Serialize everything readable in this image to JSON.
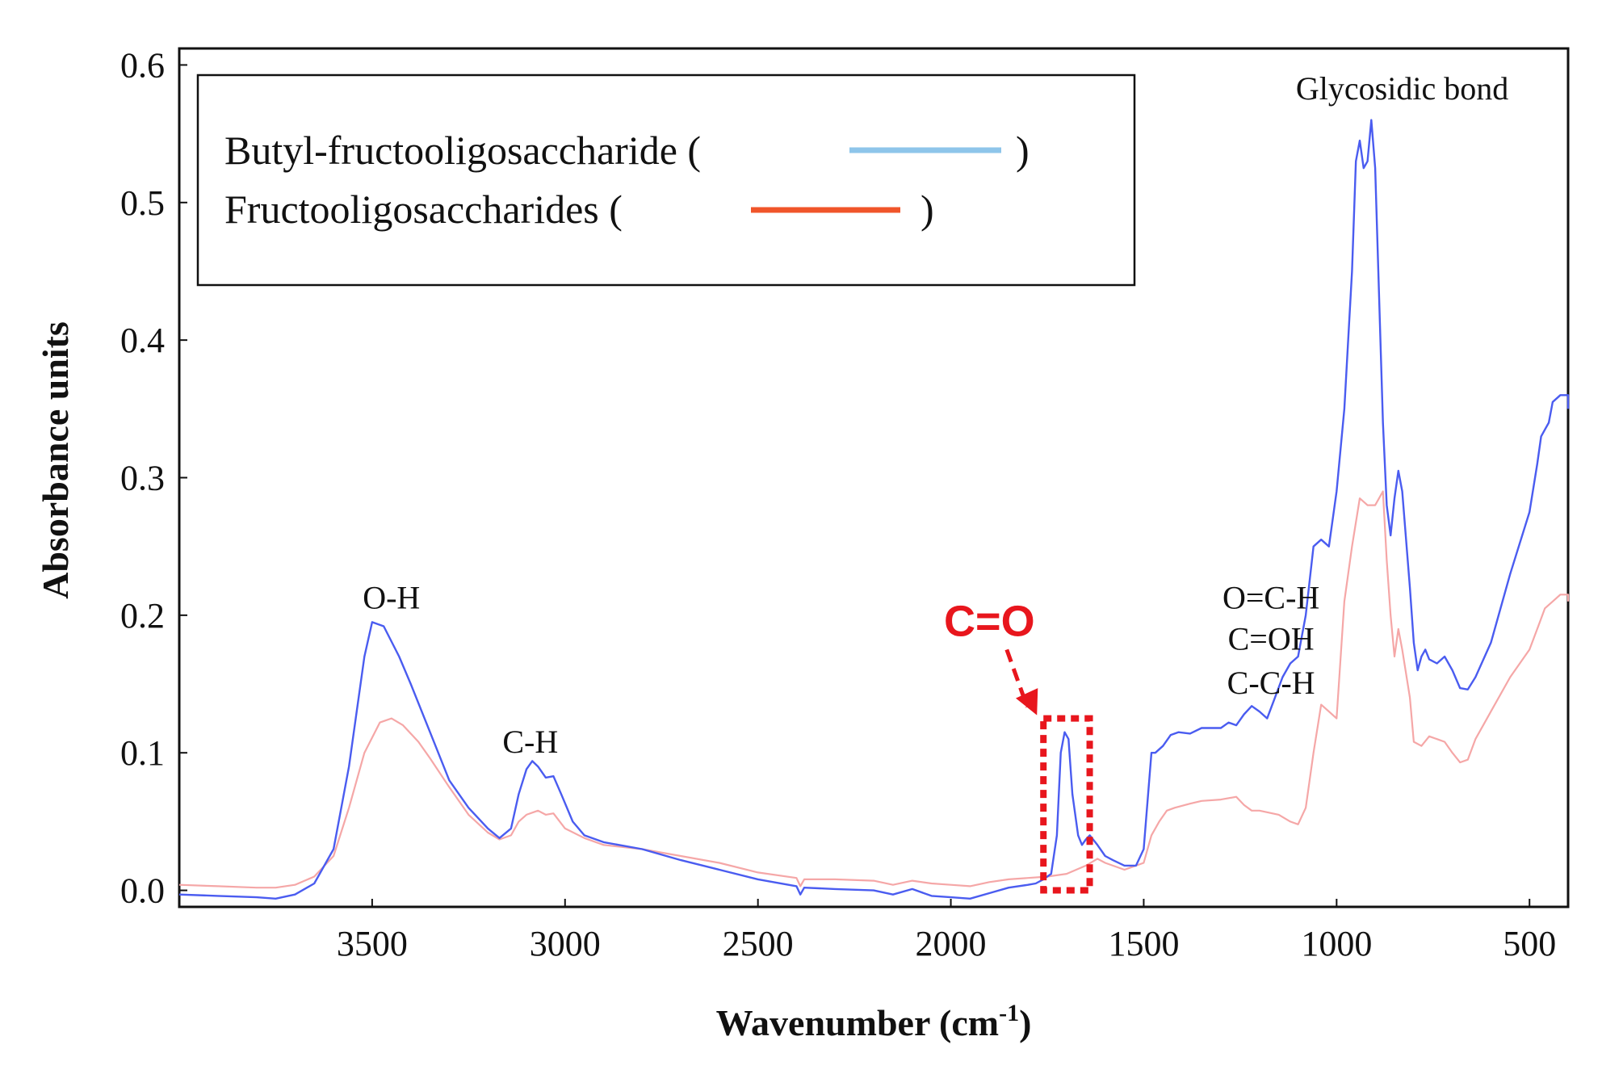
{
  "chart_data": {
    "type": "line",
    "xlabel": "Wavenumber (cm",
    "xlabel_sup": "-1",
    "xlabel_close": ")",
    "ylabel": "Absorbance units",
    "xlim": [
      4000,
      400
    ],
    "ylim": [
      -0.012,
      0.612
    ],
    "x_reversed": true,
    "grid": false,
    "x_ticks": [
      {
        "value": 3500,
        "label": "3500"
      },
      {
        "value": 3000,
        "label": "3000"
      },
      {
        "value": 2500,
        "label": "2500"
      },
      {
        "value": 2000,
        "label": "2000"
      },
      {
        "value": 1500,
        "label": "1500"
      },
      {
        "value": 1000,
        "label": "1000"
      },
      {
        "value": 500,
        "label": "500"
      }
    ],
    "y_ticks": [
      {
        "value": 0.0,
        "label": "0.0"
      },
      {
        "value": 0.1,
        "label": "0.1"
      },
      {
        "value": 0.2,
        "label": "0.2"
      },
      {
        "value": 0.3,
        "label": "0.3"
      },
      {
        "value": 0.4,
        "label": "0.4"
      },
      {
        "value": 0.5,
        "label": "0.5"
      },
      {
        "value": 0.6,
        "label": "0.6"
      }
    ],
    "legend": {
      "placement": "top-left",
      "entries": [
        {
          "label": "Butyl-fructooligosaccharide (",
          "close": ")",
          "color": "#8ec5ea"
        },
        {
          "label": "Fructooligosaccharides (",
          "close": ")",
          "color": "#f0552a"
        }
      ]
    },
    "series": [
      {
        "name": "Butyl-fructooligosaccharide",
        "color": "#4a5cf0",
        "points": [
          [
            4000,
            -0.003
          ],
          [
            3900,
            -0.004
          ],
          [
            3800,
            -0.005
          ],
          [
            3750,
            -0.006
          ],
          [
            3700,
            -0.003
          ],
          [
            3650,
            0.005
          ],
          [
            3600,
            0.03
          ],
          [
            3560,
            0.09
          ],
          [
            3520,
            0.17
          ],
          [
            3500,
            0.195
          ],
          [
            3470,
            0.192
          ],
          [
            3430,
            0.17
          ],
          [
            3400,
            0.15
          ],
          [
            3350,
            0.115
          ],
          [
            3300,
            0.08
          ],
          [
            3250,
            0.06
          ],
          [
            3200,
            0.045
          ],
          [
            3170,
            0.038
          ],
          [
            3140,
            0.045
          ],
          [
            3120,
            0.07
          ],
          [
            3100,
            0.088
          ],
          [
            3085,
            0.094
          ],
          [
            3070,
            0.09
          ],
          [
            3050,
            0.082
          ],
          [
            3030,
            0.083
          ],
          [
            3010,
            0.07
          ],
          [
            2980,
            0.05
          ],
          [
            2950,
            0.04
          ],
          [
            2900,
            0.035
          ],
          [
            2800,
            0.03
          ],
          [
            2700,
            0.022
          ],
          [
            2600,
            0.015
          ],
          [
            2500,
            0.008
          ],
          [
            2400,
            0.003
          ],
          [
            2390,
            -0.003
          ],
          [
            2380,
            0.002
          ],
          [
            2300,
            0.001
          ],
          [
            2200,
            0.0
          ],
          [
            2150,
            -0.003
          ],
          [
            2100,
            0.001
          ],
          [
            2050,
            -0.004
          ],
          [
            2000,
            -0.005
          ],
          [
            1950,
            -0.006
          ],
          [
            1900,
            -0.002
          ],
          [
            1850,
            0.002
          ],
          [
            1800,
            0.004
          ],
          [
            1780,
            0.005
          ],
          [
            1760,
            0.008
          ],
          [
            1740,
            0.012
          ],
          [
            1725,
            0.04
          ],
          [
            1715,
            0.1
          ],
          [
            1705,
            0.115
          ],
          [
            1695,
            0.11
          ],
          [
            1685,
            0.07
          ],
          [
            1670,
            0.04
          ],
          [
            1660,
            0.033
          ],
          [
            1650,
            0.037
          ],
          [
            1640,
            0.04
          ],
          [
            1620,
            0.033
          ],
          [
            1600,
            0.025
          ],
          [
            1580,
            0.022
          ],
          [
            1550,
            0.018
          ],
          [
            1520,
            0.018
          ],
          [
            1500,
            0.03
          ],
          [
            1480,
            0.1
          ],
          [
            1470,
            0.1
          ],
          [
            1450,
            0.105
          ],
          [
            1430,
            0.113
          ],
          [
            1410,
            0.115
          ],
          [
            1380,
            0.114
          ],
          [
            1350,
            0.118
          ],
          [
            1300,
            0.118
          ],
          [
            1280,
            0.122
          ],
          [
            1260,
            0.12
          ],
          [
            1240,
            0.128
          ],
          [
            1220,
            0.134
          ],
          [
            1200,
            0.13
          ],
          [
            1180,
            0.125
          ],
          [
            1160,
            0.14
          ],
          [
            1140,
            0.155
          ],
          [
            1120,
            0.165
          ],
          [
            1100,
            0.17
          ],
          [
            1080,
            0.2
          ],
          [
            1060,
            0.25
          ],
          [
            1040,
            0.255
          ],
          [
            1020,
            0.25
          ],
          [
            1000,
            0.29
          ],
          [
            980,
            0.35
          ],
          [
            960,
            0.45
          ],
          [
            950,
            0.53
          ],
          [
            940,
            0.545
          ],
          [
            930,
            0.525
          ],
          [
            920,
            0.53
          ],
          [
            910,
            0.56
          ],
          [
            900,
            0.525
          ],
          [
            880,
            0.34
          ],
          [
            870,
            0.28
          ],
          [
            860,
            0.258
          ],
          [
            850,
            0.285
          ],
          [
            840,
            0.305
          ],
          [
            830,
            0.29
          ],
          [
            810,
            0.22
          ],
          [
            800,
            0.18
          ],
          [
            790,
            0.16
          ],
          [
            780,
            0.17
          ],
          [
            770,
            0.175
          ],
          [
            760,
            0.168
          ],
          [
            740,
            0.165
          ],
          [
            720,
            0.17
          ],
          [
            700,
            0.16
          ],
          [
            680,
            0.147
          ],
          [
            660,
            0.146
          ],
          [
            640,
            0.155
          ],
          [
            600,
            0.18
          ],
          [
            550,
            0.23
          ],
          [
            500,
            0.275
          ],
          [
            480,
            0.31
          ],
          [
            470,
            0.33
          ],
          [
            460,
            0.335
          ],
          [
            450,
            0.34
          ],
          [
            440,
            0.355
          ],
          [
            420,
            0.36
          ],
          [
            400,
            0.36
          ],
          [
            380,
            0.36
          ],
          [
            360,
            0.352
          ],
          [
            350,
            0.35
          ]
        ]
      },
      {
        "name": "Fructooligosaccharides",
        "color": "#f5a7a7",
        "points": [
          [
            4000,
            0.004
          ],
          [
            3900,
            0.003
          ],
          [
            3800,
            0.002
          ],
          [
            3750,
            0.002
          ],
          [
            3700,
            0.004
          ],
          [
            3650,
            0.01
          ],
          [
            3600,
            0.025
          ],
          [
            3560,
            0.06
          ],
          [
            3520,
            0.1
          ],
          [
            3480,
            0.122
          ],
          [
            3450,
            0.125
          ],
          [
            3420,
            0.12
          ],
          [
            3380,
            0.108
          ],
          [
            3350,
            0.096
          ],
          [
            3300,
            0.075
          ],
          [
            3250,
            0.055
          ],
          [
            3200,
            0.042
          ],
          [
            3170,
            0.037
          ],
          [
            3140,
            0.04
          ],
          [
            3120,
            0.05
          ],
          [
            3100,
            0.055
          ],
          [
            3070,
            0.058
          ],
          [
            3050,
            0.055
          ],
          [
            3030,
            0.056
          ],
          [
            3000,
            0.045
          ],
          [
            2950,
            0.038
          ],
          [
            2900,
            0.033
          ],
          [
            2800,
            0.03
          ],
          [
            2700,
            0.025
          ],
          [
            2600,
            0.02
          ],
          [
            2500,
            0.013
          ],
          [
            2400,
            0.009
          ],
          [
            2390,
            0.003
          ],
          [
            2380,
            0.008
          ],
          [
            2300,
            0.008
          ],
          [
            2200,
            0.007
          ],
          [
            2150,
            0.004
          ],
          [
            2100,
            0.007
          ],
          [
            2050,
            0.005
          ],
          [
            2000,
            0.004
          ],
          [
            1950,
            0.003
          ],
          [
            1900,
            0.006
          ],
          [
            1850,
            0.008
          ],
          [
            1800,
            0.009
          ],
          [
            1750,
            0.01
          ],
          [
            1700,
            0.012
          ],
          [
            1650,
            0.018
          ],
          [
            1620,
            0.023
          ],
          [
            1600,
            0.02
          ],
          [
            1550,
            0.015
          ],
          [
            1500,
            0.02
          ],
          [
            1480,
            0.04
          ],
          [
            1460,
            0.05
          ],
          [
            1440,
            0.058
          ],
          [
            1420,
            0.06
          ],
          [
            1380,
            0.063
          ],
          [
            1350,
            0.065
          ],
          [
            1300,
            0.066
          ],
          [
            1260,
            0.068
          ],
          [
            1240,
            0.062
          ],
          [
            1220,
            0.058
          ],
          [
            1200,
            0.058
          ],
          [
            1150,
            0.055
          ],
          [
            1120,
            0.05
          ],
          [
            1100,
            0.048
          ],
          [
            1080,
            0.06
          ],
          [
            1060,
            0.1
          ],
          [
            1040,
            0.135
          ],
          [
            1020,
            0.13
          ],
          [
            1000,
            0.125
          ],
          [
            980,
            0.21
          ],
          [
            960,
            0.25
          ],
          [
            940,
            0.285
          ],
          [
            920,
            0.28
          ],
          [
            900,
            0.28
          ],
          [
            880,
            0.29
          ],
          [
            870,
            0.24
          ],
          [
            860,
            0.2
          ],
          [
            850,
            0.17
          ],
          [
            840,
            0.19
          ],
          [
            830,
            0.175
          ],
          [
            810,
            0.14
          ],
          [
            800,
            0.108
          ],
          [
            780,
            0.105
          ],
          [
            760,
            0.112
          ],
          [
            740,
            0.11
          ],
          [
            720,
            0.108
          ],
          [
            700,
            0.1
          ],
          [
            680,
            0.093
          ],
          [
            660,
            0.095
          ],
          [
            640,
            0.11
          ],
          [
            600,
            0.13
          ],
          [
            550,
            0.155
          ],
          [
            500,
            0.175
          ],
          [
            480,
            0.19
          ],
          [
            460,
            0.205
          ],
          [
            440,
            0.21
          ],
          [
            420,
            0.215
          ],
          [
            400,
            0.215
          ],
          [
            380,
            0.215
          ],
          [
            360,
            0.212
          ],
          [
            350,
            0.21
          ]
        ]
      }
    ],
    "annotations": [
      {
        "text": "O-H",
        "x": 3450,
        "y": 0.205
      },
      {
        "text": "C-H",
        "x": 3090,
        "y": 0.1
      },
      {
        "text": "C=O",
        "x": 1900,
        "y": 0.185,
        "color": "#e8161d",
        "bold": true
      },
      {
        "text": "O=C-H",
        "x": 1170,
        "y": 0.205
      },
      {
        "text": "C=OH",
        "x": 1170,
        "y": 0.175
      },
      {
        "text": "C-C-H",
        "x": 1170,
        "y": 0.143
      },
      {
        "text": "Glycosidic bond",
        "x": 830,
        "y": 0.575
      }
    ],
    "highlight": {
      "x_range": [
        1760,
        1640
      ],
      "y_range": [
        0.0,
        0.125
      ],
      "color": "#e8161d"
    }
  }
}
